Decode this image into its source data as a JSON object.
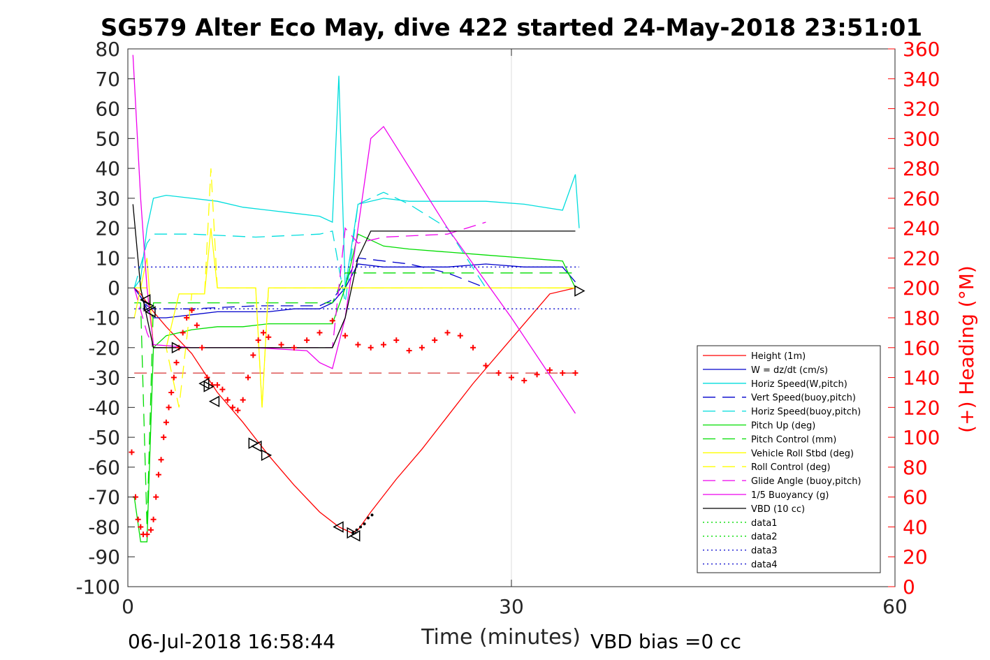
{
  "chart_data": {
    "type": "line",
    "title": "SG579 Alter Eco May, dive 422 started 24-May-2018 23:51:01",
    "xlabel": "Time (minutes)",
    "ylabel_right": "(+) Heading (°M)",
    "xlim": [
      0,
      60
    ],
    "ylim": [
      -100,
      80
    ],
    "ylim_right": [
      0,
      360
    ],
    "xticks": [
      0,
      30,
      60
    ],
    "yticks": [
      80,
      70,
      60,
      50,
      40,
      30,
      20,
      10,
      0,
      -10,
      -20,
      -30,
      -40,
      -50,
      -60,
      -70,
      -80,
      -90,
      -100
    ],
    "yticks_right": [
      360,
      340,
      320,
      300,
      280,
      260,
      240,
      220,
      200,
      180,
      160,
      140,
      120,
      100,
      80,
      60,
      40,
      20,
      0
    ],
    "grid": "x-only",
    "legend_position": "bottom-right",
    "footer_left": "06-Jul-2018 16:58:44",
    "footer_right": "VBD bias =0 cc",
    "series": [
      {
        "name": "Height (1m)",
        "color": "#ff0000",
        "style": "solid",
        "x": [
          0.5,
          1,
          2,
          3,
          5,
          7,
          9,
          11,
          13,
          15,
          16.5,
          17.5,
          18,
          19,
          21,
          23,
          25,
          27,
          29,
          31,
          33,
          35
        ],
        "y": [
          0,
          -2,
          -8,
          -13,
          -22,
          -35,
          -45,
          -56,
          -66,
          -75,
          -80,
          -82,
          -81,
          -75,
          -64,
          -54,
          -43,
          -32,
          -22,
          -12,
          -2,
          0
        ]
      },
      {
        "name": "W = dz/dt (cm/s)",
        "color": "#0000cc",
        "style": "solid",
        "x": [
          0.5,
          1,
          1.5,
          2,
          3,
          5,
          7,
          9,
          11,
          13,
          15,
          16,
          17,
          18,
          20,
          22,
          25,
          28,
          31,
          34,
          35
        ],
        "y": [
          0,
          -3,
          -7,
          -10,
          -10,
          -9,
          -8,
          -8,
          -8,
          -7,
          -7,
          -5,
          0,
          8,
          7,
          7,
          7,
          8,
          7,
          7,
          2
        ]
      },
      {
        "name": "Horiz Speed(W,pitch)",
        "color": "#00dddd",
        "style": "solid",
        "x": [
          0.5,
          1,
          1.5,
          2,
          3,
          5,
          7,
          9,
          11,
          13,
          15,
          16,
          16.5,
          17,
          18,
          20,
          22,
          25,
          28,
          31,
          34,
          35,
          35.3
        ],
        "y": [
          0,
          3,
          20,
          30,
          31,
          30,
          29,
          27,
          26,
          25,
          24,
          22,
          71,
          0,
          28,
          30,
          29,
          29,
          29,
          28,
          26,
          38,
          20
        ]
      },
      {
        "name": "Vert Speed(buoy,pitch)",
        "color": "#0000cc",
        "style": "dashed",
        "x": [
          0.5,
          1.5,
          2,
          5,
          10,
          15,
          16,
          17,
          18,
          20,
          22,
          25,
          28
        ],
        "y": [
          0,
          -6,
          -7,
          -7,
          -6,
          -6,
          -4,
          2,
          10,
          9,
          8,
          5,
          0
        ]
      },
      {
        "name": "Horiz Speed(buoy,pitch)",
        "color": "#00dddd",
        "style": "dashed",
        "x": [
          0.5,
          1.5,
          2,
          5,
          10,
          15,
          16,
          17,
          18,
          20,
          22,
          25,
          28
        ],
        "y": [
          0,
          15,
          18,
          18,
          17,
          18,
          19,
          -5,
          28,
          32,
          28,
          20,
          0
        ]
      },
      {
        "name": "Pitch Up (deg)",
        "color": "#00dd00",
        "style": "solid",
        "x": [
          0.5,
          1,
          1.5,
          2,
          3,
          5,
          7,
          9,
          11,
          13,
          15,
          16,
          17,
          18,
          20,
          22,
          25,
          28,
          31,
          34,
          35
        ],
        "y": [
          -70,
          -85,
          -85,
          -20,
          -16,
          -14,
          -13,
          -13,
          -12,
          -12,
          -12,
          -12,
          0,
          18,
          14,
          13,
          12,
          11,
          10,
          9,
          0
        ]
      },
      {
        "name": "Pitch Control (mm)",
        "color": "#00dd00",
        "style": "dashed",
        "x": [
          0.5,
          1,
          1.5,
          2,
          5,
          10,
          15,
          16,
          17,
          18,
          25,
          35
        ],
        "y": [
          -5,
          -5,
          -80,
          -5,
          -5,
          -5,
          -5,
          -5,
          5,
          5,
          5,
          5
        ]
      },
      {
        "name": "Vehicle Roll Stbd (deg)",
        "color": "#ffff00",
        "style": "solid",
        "x": [
          0.5,
          1,
          1.5,
          2,
          3,
          4,
          5,
          6,
          6.5,
          7,
          9,
          10,
          10.5,
          11,
          13,
          15,
          17,
          20,
          25,
          30,
          35
        ],
        "y": [
          -10,
          0,
          10,
          -20,
          -20,
          -2,
          -2,
          -2,
          20,
          0,
          0,
          0,
          -40,
          0,
          0,
          0,
          0,
          0,
          0,
          0,
          0
        ]
      },
      {
        "name": "Roll Control (deg)",
        "color": "#ffff00",
        "style": "dashed",
        "x": [
          0.5,
          1.5,
          2,
          3,
          4,
          5,
          6,
          6.5,
          7,
          10,
          10.5,
          11,
          15,
          20,
          35
        ],
        "y": [
          0,
          0,
          -20,
          -20,
          -40,
          -2,
          -2,
          40,
          0,
          0,
          -40,
          0,
          0,
          0,
          0
        ]
      },
      {
        "name": "Glide Angle (buoy,pitch)",
        "color": "#ee00ee",
        "style": "dashed",
        "x": [
          0.5,
          1.5,
          2,
          5,
          10,
          15,
          16,
          17,
          18,
          20,
          25,
          28
        ],
        "y": [
          0,
          -15,
          -20,
          -20,
          -20,
          -20,
          -20,
          20,
          15,
          17,
          18,
          22
        ]
      },
      {
        "name": "1/5 Buoyancy (g)",
        "color": "#ee00ee",
        "style": "solid",
        "x": [
          0.4,
          1,
          1.5,
          2,
          5,
          10,
          14,
          15,
          16,
          17,
          18,
          19,
          20,
          25,
          30,
          35
        ],
        "y": [
          78,
          30,
          0,
          -19,
          -20,
          -20,
          -21,
          -25,
          -27,
          -10,
          20,
          50,
          54,
          20,
          -10,
          -42
        ]
      },
      {
        "name": "VBD (10 cc)",
        "color": "#000000",
        "style": "solid",
        "x": [
          0.4,
          1,
          1.5,
          2,
          5,
          10,
          15,
          16,
          17,
          18,
          19,
          20,
          25,
          30,
          35
        ],
        "y": [
          28,
          0,
          -10,
          -20,
          -20,
          -20,
          -20,
          -20,
          -10,
          10,
          19,
          19,
          19,
          19,
          19
        ]
      },
      {
        "name": "data1",
        "color": "#00dd00",
        "style": "dotted",
        "x": [],
        "y": []
      },
      {
        "name": "data2",
        "color": "#00dd00",
        "style": "dotted",
        "x": [],
        "y": []
      },
      {
        "name": "data3",
        "color": "#0000cc",
        "style": "dotted",
        "x": [
          0.5,
          35.3
        ],
        "y": [
          7,
          7
        ]
      },
      {
        "name": "data4",
        "color": "#0000cc",
        "style": "dotted",
        "x": [
          0.5,
          35.3
        ],
        "y": [
          -7,
          -7
        ]
      }
    ],
    "extras": {
      "heading_reference_dashed": {
        "color": "#cc0000",
        "y_right": 143
      },
      "heading_markers": {
        "color": "#ff0000",
        "x": [
          0.3,
          0.6,
          0.8,
          1.0,
          1.2,
          1.5,
          1.8,
          2.0,
          2.2,
          2.4,
          2.6,
          2.8,
          3.0,
          3.2,
          3.4,
          3.6,
          3.8,
          4.0,
          4.3,
          4.6,
          5.0,
          5.4,
          5.8,
          6.2,
          6.6,
          7.0,
          7.4,
          7.8,
          8.2,
          8.6,
          9.0,
          9.4,
          9.8,
          10.2,
          10.6,
          11.0,
          12,
          13,
          14,
          15,
          16,
          17,
          18,
          19,
          20,
          21,
          22,
          23,
          24,
          25,
          26,
          27,
          28,
          29,
          30,
          31,
          32,
          33,
          34,
          35
        ],
        "y": [
          90,
          60,
          45,
          40,
          35,
          35,
          38,
          45,
          60,
          75,
          85,
          100,
          110,
          120,
          130,
          140,
          150,
          160,
          170,
          180,
          185,
          175,
          160,
          140,
          135,
          135,
          132,
          125,
          120,
          118,
          125,
          140,
          155,
          165,
          170,
          167,
          162,
          160,
          165,
          170,
          178,
          168,
          162,
          160,
          162,
          165,
          158,
          160,
          165,
          170,
          168,
          160,
          148,
          143,
          140,
          138,
          142,
          145,
          143,
          143
        ]
      },
      "triangle_markers": {
        "color": "#000000",
        "points": [
          [
            1.4,
            -4
          ],
          [
            1.6,
            -6
          ],
          [
            1.8,
            -8
          ],
          [
            3.8,
            -20
          ],
          [
            6.0,
            -32
          ],
          [
            6.3,
            -33
          ],
          [
            6.8,
            -38
          ],
          [
            9.8,
            -52
          ],
          [
            10.1,
            -53
          ],
          [
            10.8,
            -56
          ],
          [
            16.5,
            -80
          ],
          [
            17.5,
            -82
          ],
          [
            17.8,
            -83
          ],
          [
            35.3,
            -1
          ]
        ]
      },
      "black_dots": {
        "x": [
          17.6,
          17.9,
          18.2,
          18.5,
          18.8,
          19.1
        ],
        "y": [
          -82,
          -81,
          -80,
          -79,
          -77,
          -76
        ]
      }
    }
  }
}
